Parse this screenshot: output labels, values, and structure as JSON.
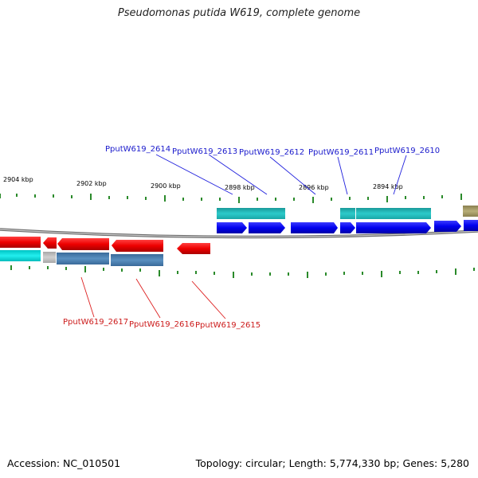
{
  "title": "Pseudomonas putida W619, complete genome",
  "accession": "Accession: NC_010501",
  "summary": "Topology: circular; Length: 5,774,330 bp; Genes: 5,280",
  "axis": {
    "kbp_labels": [
      "2904 kbp",
      "2902 kbp",
      "2900 kbp",
      "2898 kbp",
      "2896 kbp",
      "2894 kbp"
    ]
  },
  "genes_top": {
    "labels": [
      "PputW619_2614",
      "PputW619_2613",
      "PputW619_2612",
      "PputW619_2611",
      "PputW619_2610"
    ],
    "label_color": "#1a1acc"
  },
  "genes_bottom": {
    "labels": [
      "PputW619_2617",
      "PputW619_2616",
      "PputW619_2615"
    ],
    "label_color": "#cc1a1a"
  },
  "colors": {
    "forward_gene": "#0000ee",
    "reverse_gene": "#ee0000",
    "cds_teal": "#22b8b8",
    "cds_cyan": "#00dddd",
    "cds_steel": "#4a7fb0",
    "cds_grey": "#bbbbbb",
    "cds_olive": "#a39a60",
    "tick": "#2a8a2a",
    "backbone": "#8a8a8a"
  }
}
